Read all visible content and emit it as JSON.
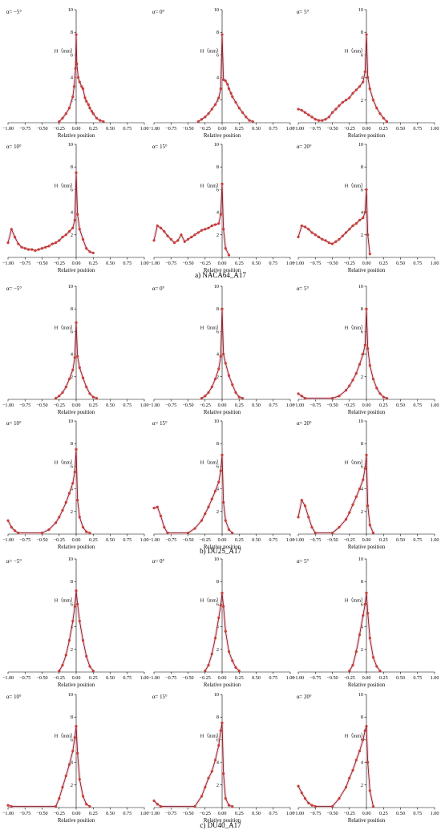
{
  "colors": {
    "line": "#7a1f1f",
    "marker": "#e23b2e",
    "halo": "#f7b8c8",
    "axis": "#000000"
  },
  "chart_data": [
    {
      "type": "line",
      "group": "a",
      "title": "α= −5°",
      "xlabel": "Relative position",
      "ylabel": "H（mm）",
      "xlim": [
        -1,
        1
      ],
      "ylim": [
        0,
        10
      ],
      "x": [
        -0.25,
        -0.2,
        -0.15,
        -0.1,
        -0.05,
        -0.03,
        -0.01,
        0,
        0.01,
        0.03,
        0.05,
        0.08,
        0.1,
        0.13,
        0.15,
        0.18,
        0.2,
        0.23,
        0.25,
        0.3,
        0.35,
        0.4
      ],
      "y": [
        0.1,
        0.4,
        0.8,
        1.3,
        2.3,
        3.2,
        4.8,
        7.8,
        5.2,
        4.0,
        3.6,
        3.2,
        3.0,
        2.2,
        1.9,
        1.6,
        1.3,
        1.0,
        0.8,
        0.4,
        0.2,
        0.1
      ]
    },
    {
      "type": "line",
      "group": "a",
      "title": "α= 0°",
      "xlabel": "Relative position",
      "ylabel": "H（mm）",
      "xlim": [
        -1,
        1
      ],
      "ylim": [
        0,
        10
      ],
      "x": [
        -0.35,
        -0.3,
        -0.25,
        -0.2,
        -0.15,
        -0.1,
        -0.05,
        -0.02,
        0,
        0.02,
        0.05,
        0.08,
        0.1,
        0.13,
        0.15,
        0.2,
        0.25,
        0.3,
        0.35,
        0.4,
        0.45
      ],
      "y": [
        0.1,
        0.3,
        0.5,
        0.8,
        1.2,
        1.6,
        2.2,
        3.0,
        7.8,
        3.8,
        3.7,
        3.4,
        3.0,
        2.6,
        2.3,
        1.8,
        1.3,
        0.9,
        0.5,
        0.2,
        0.1
      ]
    },
    {
      "type": "line",
      "group": "a",
      "title": "α= 5°",
      "xlabel": "Relative position",
      "ylabel": "H（mm）",
      "xlim": [
        -1,
        1
      ],
      "ylim": [
        0,
        10
      ],
      "x": [
        -1,
        -0.95,
        -0.9,
        -0.85,
        -0.8,
        -0.75,
        -0.7,
        -0.65,
        -0.6,
        -0.55,
        -0.5,
        -0.45,
        -0.4,
        -0.35,
        -0.3,
        -0.25,
        -0.2,
        -0.15,
        -0.1,
        -0.05,
        -0.02,
        0,
        0.02,
        0.05,
        0.1,
        0.15,
        0.2,
        0.25,
        0.3
      ],
      "y": [
        1.2,
        1.1,
        0.9,
        0.7,
        0.5,
        0.3,
        0.2,
        0.2,
        0.3,
        0.5,
        0.9,
        1.2,
        1.5,
        1.8,
        2.0,
        2.2,
        2.6,
        2.9,
        3.2,
        3.6,
        4.5,
        7.8,
        4.0,
        3.0,
        2.0,
        1.3,
        0.8,
        0.4,
        0.1
      ]
    },
    {
      "type": "line",
      "group": "a",
      "title": "α= 10°",
      "xlabel": "Relative position",
      "ylabel": "H（mm）",
      "xlim": [
        -1,
        1
      ],
      "ylim": [
        0,
        10
      ],
      "x": [
        -1,
        -0.95,
        -0.9,
        -0.85,
        -0.8,
        -0.75,
        -0.7,
        -0.65,
        -0.6,
        -0.55,
        -0.5,
        -0.45,
        -0.4,
        -0.35,
        -0.3,
        -0.25,
        -0.2,
        -0.15,
        -0.1,
        -0.05,
        -0.02,
        0,
        0.02,
        0.05,
        0.1,
        0.15,
        0.2,
        0.25
      ],
      "y": [
        1.3,
        2.5,
        1.8,
        1.2,
        0.9,
        0.8,
        0.7,
        0.7,
        0.6,
        0.7,
        0.8,
        0.9,
        1.0,
        1.2,
        1.3,
        1.5,
        1.8,
        2.0,
        2.3,
        2.6,
        3.3,
        7.5,
        3.8,
        2.5,
        1.6,
        0.8,
        0.5,
        0.4
      ]
    },
    {
      "type": "line",
      "group": "a",
      "title": "α= 15°",
      "xlabel": "Relative position",
      "ylabel": "H（mm）",
      "xlim": [
        -1,
        1
      ],
      "ylim": [
        0,
        10
      ],
      "x": [
        -1,
        -0.95,
        -0.9,
        -0.85,
        -0.8,
        -0.75,
        -0.7,
        -0.65,
        -0.6,
        -0.55,
        -0.5,
        -0.45,
        -0.4,
        -0.35,
        -0.3,
        -0.25,
        -0.2,
        -0.15,
        -0.1,
        -0.05,
        -0.02,
        0,
        0.02,
        0.05,
        0.1
      ],
      "y": [
        1.5,
        2.8,
        2.6,
        2.3,
        1.9,
        1.6,
        1.3,
        1.5,
        2.0,
        1.4,
        1.6,
        1.8,
        2.0,
        2.2,
        2.4,
        2.5,
        2.6,
        2.8,
        2.9,
        3.0,
        3.8,
        6.5,
        2.5,
        0.8,
        0.2
      ]
    },
    {
      "type": "line",
      "group": "a",
      "title": "α= 20°",
      "xlabel": "Relative position",
      "ylabel": "H（mm）",
      "xlim": [
        -1,
        1
      ],
      "ylim": [
        0,
        10
      ],
      "x": [
        -1,
        -0.95,
        -0.9,
        -0.85,
        -0.8,
        -0.75,
        -0.7,
        -0.65,
        -0.6,
        -0.55,
        -0.5,
        -0.45,
        -0.4,
        -0.35,
        -0.3,
        -0.25,
        -0.2,
        -0.15,
        -0.1,
        -0.05,
        -0.02,
        0,
        0.02,
        0.05
      ],
      "y": [
        1.8,
        2.8,
        2.7,
        2.5,
        2.2,
        2.0,
        1.8,
        1.6,
        1.5,
        1.3,
        1.2,
        1.4,
        1.6,
        1.9,
        2.2,
        2.5,
        2.8,
        3.0,
        3.3,
        3.5,
        4.0,
        6.0,
        2.0,
        0.3
      ]
    },
    {
      "type": "line",
      "group": "b",
      "title": "α= −5°",
      "xlabel": "Relative position",
      "ylabel": "H（mm）",
      "xlim": [
        -1,
        1
      ],
      "ylim": [
        0,
        10
      ],
      "x": [
        -0.3,
        -0.25,
        -0.2,
        -0.15,
        -0.1,
        -0.05,
        -0.02,
        0,
        0.02,
        0.05,
        0.1,
        0.15,
        0.2,
        0.25,
        0.3
      ],
      "y": [
        0.1,
        0.3,
        0.6,
        1.1,
        1.8,
        2.6,
        3.7,
        6.8,
        3.8,
        2.8,
        1.9,
        1.1,
        0.5,
        0.2,
        0.1
      ]
    },
    {
      "type": "line",
      "group": "b",
      "title": "α= 0°",
      "xlabel": "Relative position",
      "ylabel": "H（mm）",
      "xlim": [
        -1,
        1
      ],
      "ylim": [
        0,
        10
      ],
      "x": [
        -0.3,
        -0.25,
        -0.2,
        -0.15,
        -0.1,
        -0.05,
        -0.02,
        0,
        0.02,
        0.05,
        0.1,
        0.15,
        0.2,
        0.25,
        0.3
      ],
      "y": [
        0.1,
        0.3,
        0.6,
        1.1,
        1.8,
        2.7,
        3.8,
        8.0,
        4.0,
        3.2,
        2.1,
        1.3,
        0.6,
        0.2,
        0.1
      ]
    },
    {
      "type": "line",
      "group": "b",
      "title": "α= 5°",
      "xlabel": "Relative position",
      "ylabel": "H（mm）",
      "xlim": [
        -1,
        1
      ],
      "ylim": [
        0,
        10
      ],
      "x": [
        -1,
        -0.95,
        -0.9,
        -0.5,
        -0.4,
        -0.3,
        -0.25,
        -0.2,
        -0.15,
        -0.1,
        -0.05,
        -0.02,
        0,
        0.02,
        0.05,
        0.1,
        0.15,
        0.2,
        0.25,
        0.3
      ],
      "y": [
        0.5,
        0.3,
        0.1,
        0.1,
        0.3,
        0.8,
        1.2,
        1.7,
        2.3,
        3.1,
        4.0,
        4.8,
        8.0,
        4.5,
        3.0,
        1.8,
        1.0,
        0.5,
        0.2,
        0.1
      ]
    },
    {
      "type": "line",
      "group": "b",
      "title": "α= 10°",
      "xlabel": "Relative position",
      "ylabel": "H（mm）",
      "xlim": [
        -1,
        1
      ],
      "ylim": [
        0,
        10
      ],
      "x": [
        -1,
        -0.95,
        -0.9,
        -0.85,
        -0.5,
        -0.4,
        -0.3,
        -0.25,
        -0.2,
        -0.15,
        -0.1,
        -0.05,
        -0.02,
        0,
        0.02,
        0.05,
        0.1,
        0.15,
        0.2
      ],
      "y": [
        1.2,
        0.6,
        0.3,
        0.1,
        0.1,
        0.4,
        1.0,
        1.5,
        2.1,
        2.8,
        3.6,
        4.5,
        5.5,
        7.5,
        3.0,
        1.5,
        0.6,
        0.2,
        0.1
      ]
    },
    {
      "type": "line",
      "group": "b",
      "title": "α= 15°",
      "xlabel": "Relative position",
      "ylabel": "H（mm）",
      "xlim": [
        -1,
        1
      ],
      "ylim": [
        0,
        10
      ],
      "x": [
        -1,
        -0.95,
        -0.9,
        -0.85,
        -0.8,
        -0.5,
        -0.4,
        -0.3,
        -0.25,
        -0.2,
        -0.15,
        -0.1,
        -0.05,
        -0.02,
        0,
        0.02,
        0.05,
        0.1,
        0.15
      ],
      "y": [
        2.3,
        2.4,
        1.6,
        0.6,
        0.1,
        0.1,
        0.5,
        1.2,
        1.8,
        2.4,
        3.1,
        3.8,
        4.6,
        5.6,
        7.0,
        2.8,
        1.2,
        0.4,
        0.1
      ]
    },
    {
      "type": "line",
      "group": "b",
      "title": "α= 20°",
      "xlabel": "Relative position",
      "ylabel": "H（mm）",
      "xlim": [
        -1,
        1
      ],
      "ylim": [
        0,
        10
      ],
      "x": [
        -1,
        -0.95,
        -0.9,
        -0.85,
        -0.8,
        -0.75,
        -0.5,
        -0.4,
        -0.3,
        -0.25,
        -0.2,
        -0.15,
        -0.1,
        -0.05,
        -0.02,
        0,
        0.02,
        0.05,
        0.1
      ],
      "y": [
        1.5,
        3.0,
        2.5,
        1.5,
        0.6,
        0.1,
        0.1,
        0.6,
        1.3,
        1.9,
        2.6,
        3.3,
        4.0,
        4.8,
        5.8,
        7.0,
        2.5,
        0.8,
        0.1
      ]
    },
    {
      "type": "line",
      "group": "c",
      "title": "α= −5°",
      "xlabel": "Relative position",
      "ylabel": "H（mm）",
      "xlim": [
        -1,
        1
      ],
      "ylim": [
        0,
        10
      ],
      "x": [
        -0.25,
        -0.2,
        -0.15,
        -0.1,
        -0.05,
        -0.02,
        0,
        0.02,
        0.05,
        0.1,
        0.15,
        0.2,
        0.25
      ],
      "y": [
        0.1,
        0.6,
        1.5,
        2.8,
        4.5,
        5.8,
        7.2,
        6.0,
        4.5,
        2.8,
        1.4,
        0.5,
        0.1
      ]
    },
    {
      "type": "line",
      "group": "c",
      "title": "α= 0°",
      "xlabel": "Relative position",
      "ylabel": "H（mm）",
      "xlim": [
        -1,
        1
      ],
      "ylim": [
        0,
        10
      ],
      "x": [
        -0.25,
        -0.2,
        -0.15,
        -0.1,
        -0.05,
        -0.02,
        0,
        0.02,
        0.05,
        0.1,
        0.15,
        0.2,
        0.25
      ],
      "y": [
        0.1,
        0.6,
        1.6,
        3.0,
        4.8,
        5.9,
        7.0,
        5.8,
        3.6,
        1.8,
        1.0,
        0.4,
        0.1
      ]
    },
    {
      "type": "line",
      "group": "c",
      "title": "α= 5°",
      "xlabel": "Relative position",
      "ylabel": "H（mm）",
      "xlim": [
        -1,
        1
      ],
      "ylim": [
        0,
        10
      ],
      "x": [
        -0.25,
        -0.2,
        -0.15,
        -0.1,
        -0.05,
        -0.02,
        0,
        0.02,
        0.05,
        0.1,
        0.15,
        0.2
      ],
      "y": [
        0.1,
        0.6,
        1.8,
        3.3,
        5.0,
        6.0,
        7.0,
        5.2,
        3.0,
        1.3,
        0.5,
        0.1
      ]
    },
    {
      "type": "line",
      "group": "c",
      "title": "α= 10°",
      "xlabel": "Relative position",
      "ylabel": "H（mm）",
      "xlim": [
        -1,
        1
      ],
      "ylim": [
        0,
        10
      ],
      "x": [
        -1,
        -0.95,
        -0.3,
        -0.25,
        -0.2,
        -0.15,
        -0.1,
        -0.05,
        -0.02,
        0,
        0.02,
        0.05,
        0.1,
        0.15,
        0.2
      ],
      "y": [
        0.2,
        0.1,
        0.1,
        0.8,
        1.8,
        2.8,
        3.8,
        5.0,
        6.2,
        7.2,
        4.8,
        2.5,
        1.0,
        0.3,
        0.1
      ]
    },
    {
      "type": "line",
      "group": "c",
      "title": "α= 15°",
      "xlabel": "Relative position",
      "ylabel": "H（mm）",
      "xlim": [
        -1,
        1
      ],
      "ylim": [
        0,
        10
      ],
      "x": [
        -1,
        -0.95,
        -0.9,
        -0.4,
        -0.3,
        -0.25,
        -0.2,
        -0.15,
        -0.1,
        -0.05,
        -0.02,
        0,
        0.02,
        0.05,
        0.1,
        0.15
      ],
      "y": [
        0.6,
        0.3,
        0.1,
        0.1,
        1.0,
        1.8,
        2.6,
        3.2,
        4.2,
        5.5,
        6.8,
        7.5,
        3.0,
        0.8,
        0.2,
        0.1
      ]
    },
    {
      "type": "line",
      "group": "c",
      "title": "α= 20°",
      "xlabel": "Relative position",
      "ylabel": "H（mm）",
      "xlim": [
        -1,
        1
      ],
      "ylim": [
        0,
        10
      ],
      "x": [
        -1,
        -0.95,
        -0.9,
        -0.85,
        -0.8,
        -0.75,
        -0.5,
        -0.4,
        -0.3,
        -0.25,
        -0.2,
        -0.15,
        -0.1,
        -0.05,
        -0.02,
        0,
        0.02,
        0.05,
        0.1
      ],
      "y": [
        1.9,
        1.3,
        0.8,
        0.4,
        0.2,
        0.1,
        0.1,
        0.8,
        1.8,
        2.6,
        3.3,
        4.2,
        5.0,
        6.0,
        6.8,
        7.2,
        4.0,
        1.5,
        0.1
      ]
    }
  ],
  "axis": {
    "xticks": [
      "−1.00",
      "−0.75",
      "−0.50",
      "−0.25",
      "0.00",
      "0.25",
      "0.50",
      "0.75",
      "1.00"
    ],
    "yticks": [
      "2",
      "4",
      "6",
      "8",
      "10"
    ]
  },
  "captions": [
    "a) NACA64_A17",
    "b) DU25_A17",
    "c) DU40_A17"
  ]
}
